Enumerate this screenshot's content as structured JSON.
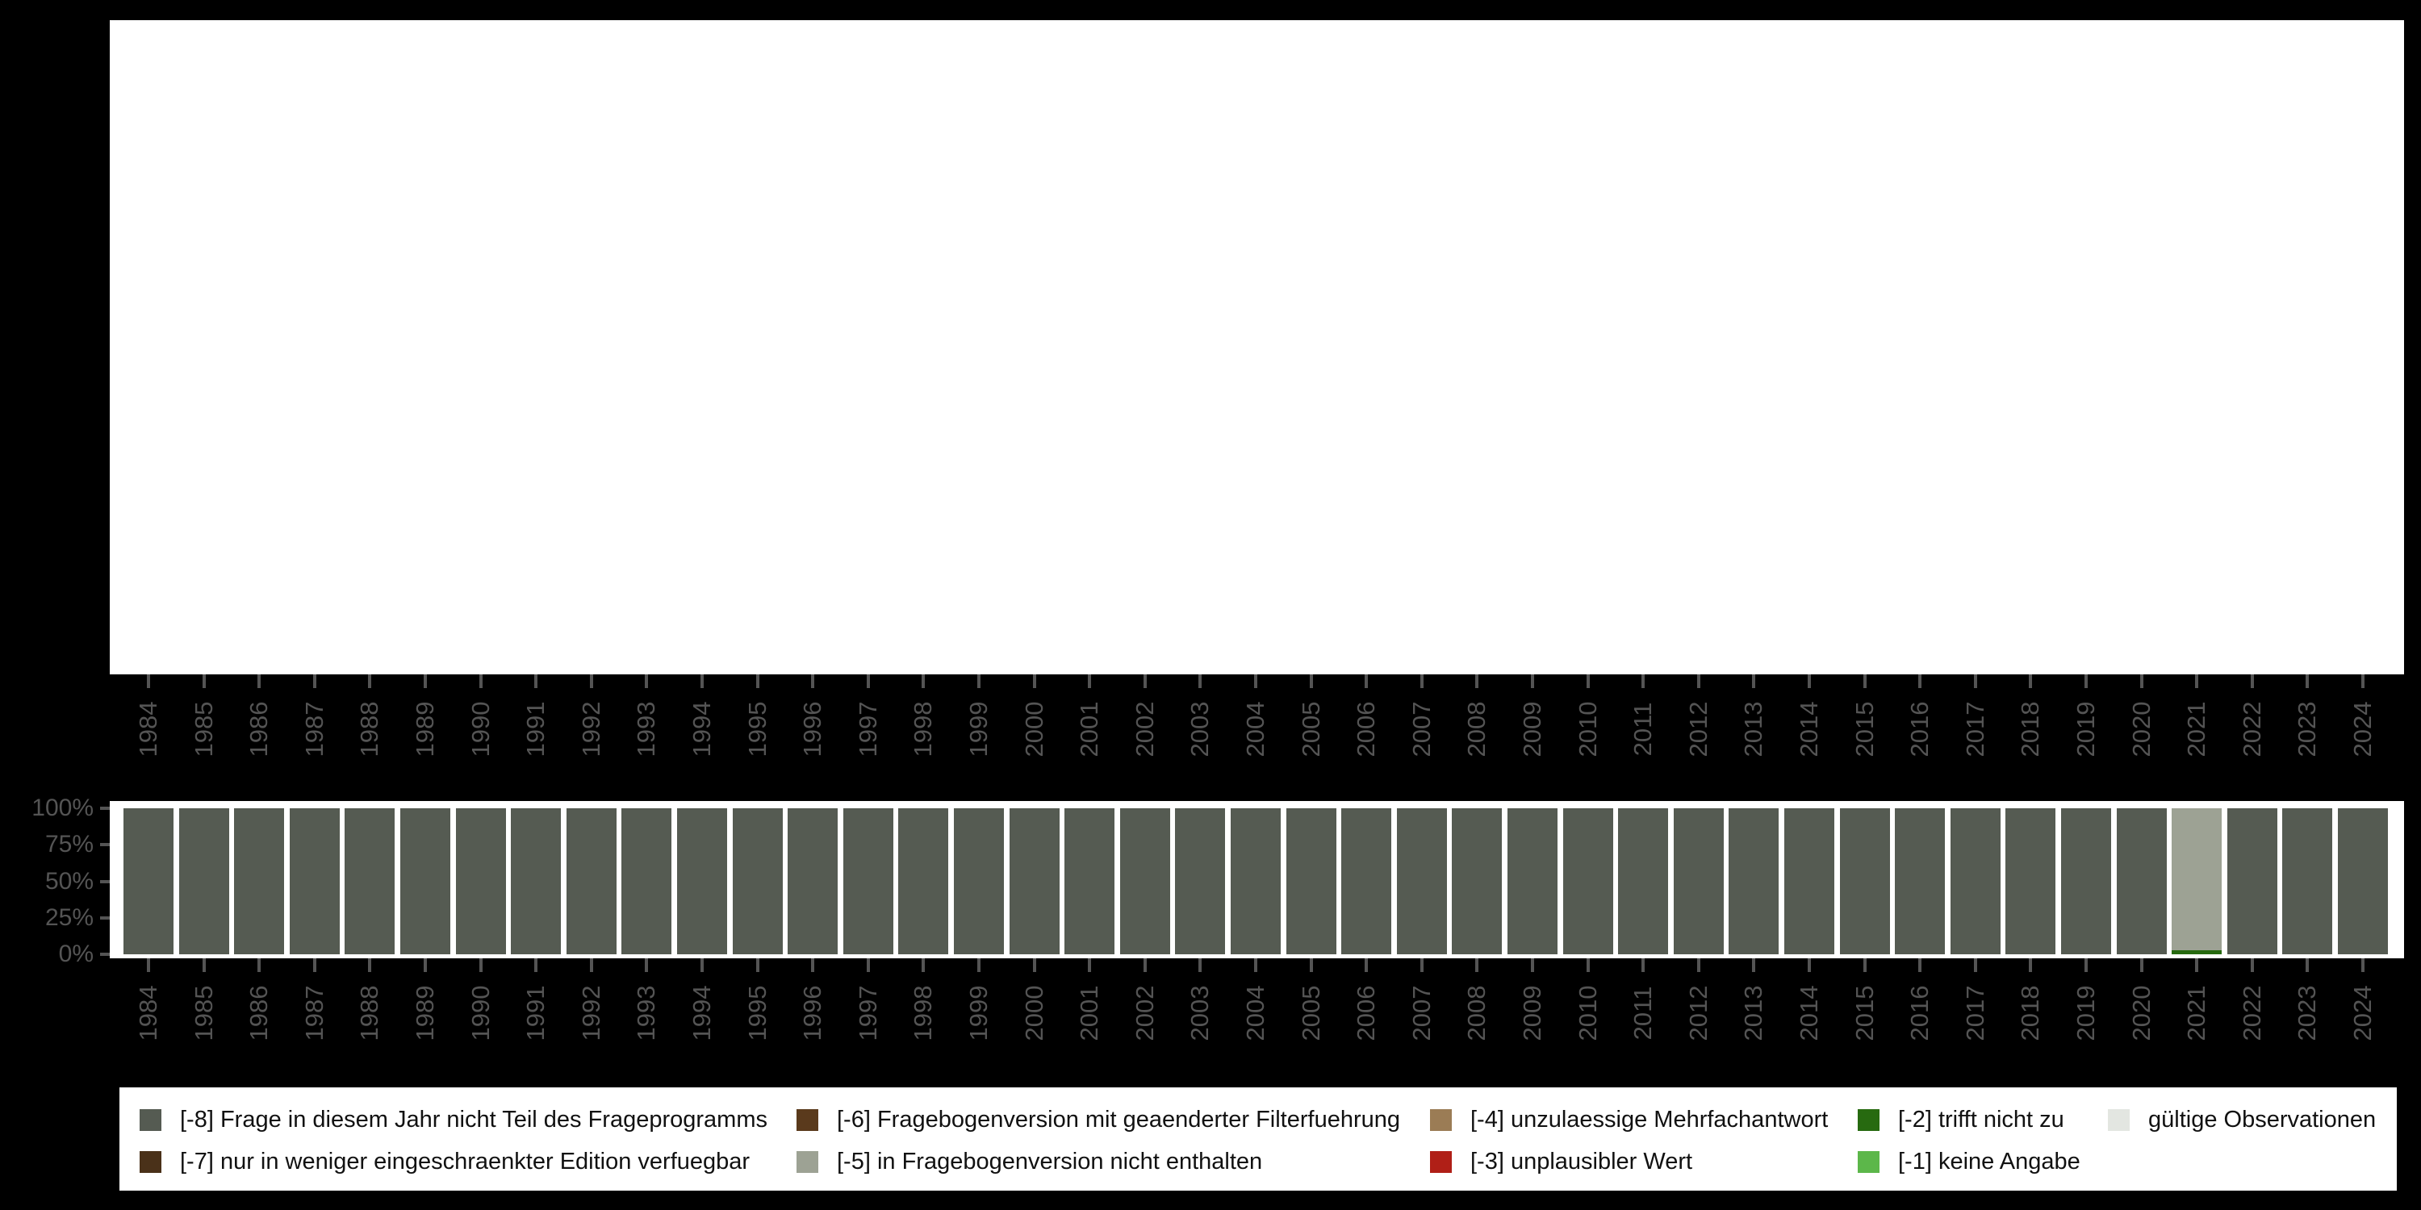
{
  "figure": {
    "background_color": "#000000",
    "panel_color": "#ffffff",
    "axis_text_color": "#545454"
  },
  "years": [
    "1984",
    "1985",
    "1986",
    "1987",
    "1988",
    "1989",
    "1990",
    "1991",
    "1992",
    "1993",
    "1994",
    "1995",
    "1996",
    "1997",
    "1998",
    "1999",
    "2000",
    "2001",
    "2002",
    "2003",
    "2004",
    "2005",
    "2006",
    "2007",
    "2008",
    "2009",
    "2010",
    "2011",
    "2012",
    "2013",
    "2014",
    "2015",
    "2016",
    "2017",
    "2018",
    "2019",
    "2020",
    "2021",
    "2022",
    "2023",
    "2024"
  ],
  "y_axis": {
    "tick_labels": [
      "0%",
      "25%",
      "50%",
      "75%",
      "100%"
    ],
    "tick_values": [
      0,
      25,
      50,
      75,
      100
    ]
  },
  "chart_data": {
    "type": "bar",
    "stacked": true,
    "unit": "percent of observations",
    "title": "",
    "xlabel": "",
    "ylabel": "",
    "ylim": [
      0,
      100
    ],
    "grid": false,
    "legend_position": "bottom",
    "categories": [
      "1984",
      "1985",
      "1986",
      "1987",
      "1988",
      "1989",
      "1990",
      "1991",
      "1992",
      "1993",
      "1994",
      "1995",
      "1996",
      "1997",
      "1998",
      "1999",
      "2000",
      "2001",
      "2002",
      "2003",
      "2004",
      "2005",
      "2006",
      "2007",
      "2008",
      "2009",
      "2010",
      "2011",
      "2012",
      "2013",
      "2014",
      "2015",
      "2016",
      "2017",
      "2018",
      "2019",
      "2020",
      "2021",
      "2022",
      "2023",
      "2024"
    ],
    "stack_bottom_to_top": [
      "-2",
      "-5",
      "-8"
    ],
    "series": [
      {
        "code": "-8",
        "name": "[-8] Frage in diesem Jahr nicht Teil des Frageprogramms",
        "color": "#555b52",
        "values": [
          100,
          100,
          100,
          100,
          100,
          100,
          100,
          100,
          100,
          100,
          100,
          100,
          100,
          100,
          100,
          100,
          100,
          100,
          100,
          100,
          100,
          100,
          100,
          100,
          100,
          100,
          100,
          100,
          100,
          100,
          100,
          100,
          100,
          100,
          100,
          100,
          100,
          0,
          100,
          100,
          100
        ]
      },
      {
        "code": "-5",
        "name": "[-5] in Fragebogenversion nicht enthalten",
        "color": "#9da294",
        "values": [
          0,
          0,
          0,
          0,
          0,
          0,
          0,
          0,
          0,
          0,
          0,
          0,
          0,
          0,
          0,
          0,
          0,
          0,
          0,
          0,
          0,
          0,
          0,
          0,
          0,
          0,
          0,
          0,
          0,
          0,
          0,
          0,
          0,
          0,
          0,
          0,
          0,
          97.5,
          0,
          0,
          0
        ]
      },
      {
        "code": "-2",
        "name": "[-2] trifft nicht zu",
        "color": "#276a10",
        "values": [
          0,
          0,
          0,
          0,
          0,
          0,
          0,
          0,
          0,
          0,
          0,
          0,
          0,
          0,
          0,
          0,
          0,
          0,
          0,
          0,
          0,
          0,
          0,
          0,
          0,
          0,
          0,
          0,
          0,
          0,
          0,
          0,
          0,
          0,
          0,
          0,
          0,
          2.5,
          0,
          0,
          0
        ]
      }
    ]
  },
  "legend": {
    "columns": [
      {
        "items": [
          {
            "label": "[-8] Frage in diesem Jahr nicht Teil des Frageprogramms",
            "color": "#555b52"
          },
          {
            "label": "[-7] nur in weniger eingeschraenkter Edition verfuegbar",
            "color": "#4a3119"
          }
        ]
      },
      {
        "items": [
          {
            "label": "[-6] Fragebogenversion mit geaenderter Filterfuehrung",
            "color": "#5a3a1c"
          },
          {
            "label": "[-5] in Fragebogenversion nicht enthalten",
            "color": "#9da294"
          }
        ]
      },
      {
        "items": [
          {
            "label": "[-4] unzulaessige Mehrfachantwort",
            "color": "#9b7c55"
          },
          {
            "label": "[-3] unplausibler Wert",
            "color": "#b01f17"
          }
        ]
      },
      {
        "items": [
          {
            "label": "[-2] trifft nicht zu",
            "color": "#276a10"
          },
          {
            "label": "[-1] keine Angabe",
            "color": "#5cb74a"
          }
        ]
      },
      {
        "items": [
          {
            "label": "gültige Observationen",
            "color": "#e3e6e1"
          }
        ]
      }
    ]
  }
}
